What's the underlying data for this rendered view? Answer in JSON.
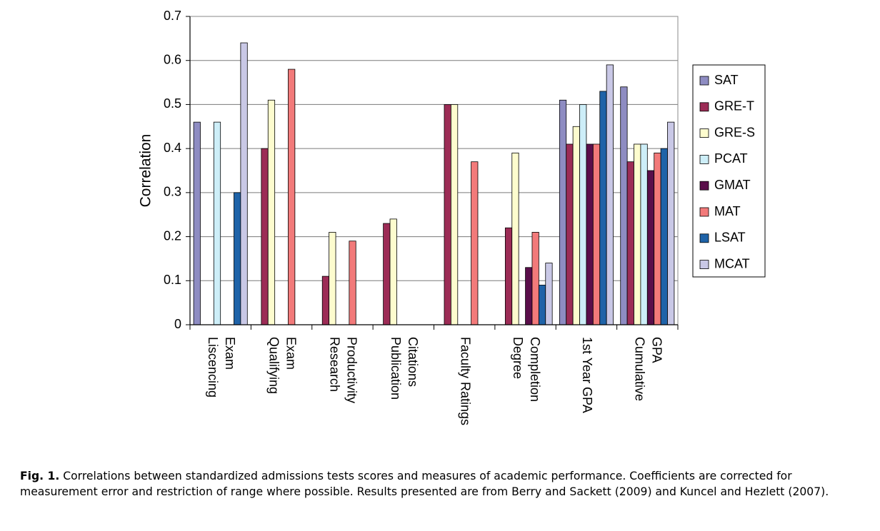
{
  "chart_data": {
    "type": "bar",
    "ylabel": "Correlation",
    "xlabel": "",
    "ylim": [
      0,
      0.7
    ],
    "yticks": [
      "0",
      "0.1",
      "0.2",
      "0.3",
      "0.4",
      "0.5",
      "0.6",
      "0.7"
    ],
    "categories": [
      [
        "Liscencing",
        "Exam"
      ],
      [
        "Qualifying",
        "Exam"
      ],
      [
        "Research",
        "Productivity"
      ],
      [
        "Publication",
        "Citations"
      ],
      [
        "Faculty Ratings"
      ],
      [
        "Degree",
        "Completion"
      ],
      [
        "1st Year GPA"
      ],
      [
        "Cumulative",
        "GPA"
      ]
    ],
    "series": [
      {
        "name": "SAT",
        "color": "#8e8cc2",
        "values": [
          0.46,
          null,
          null,
          null,
          null,
          null,
          0.51,
          0.54
        ]
      },
      {
        "name": "GRE-T",
        "color": "#9c2c56",
        "values": [
          null,
          0.4,
          0.11,
          0.23,
          0.5,
          0.22,
          0.41,
          0.37
        ]
      },
      {
        "name": "GRE-S",
        "color": "#fdfcce",
        "values": [
          null,
          0.51,
          0.21,
          0.24,
          0.5,
          0.39,
          0.45,
          0.41
        ]
      },
      {
        "name": "PCAT",
        "color": "#cdeef8",
        "values": [
          0.46,
          null,
          null,
          null,
          null,
          null,
          0.5,
          0.41
        ]
      },
      {
        "name": "GMAT",
        "color": "#5a0e4a",
        "values": [
          null,
          null,
          null,
          null,
          null,
          0.13,
          0.41,
          0.35
        ]
      },
      {
        "name": "MAT",
        "color": "#f27a7a",
        "values": [
          null,
          0.58,
          0.19,
          null,
          0.37,
          0.21,
          0.41,
          0.39
        ]
      },
      {
        "name": "LSAT",
        "color": "#1f63a8",
        "values": [
          0.3,
          null,
          null,
          null,
          null,
          0.09,
          0.53,
          0.4
        ]
      },
      {
        "name": "MCAT",
        "color": "#c9c8e6",
        "values": [
          0.64,
          null,
          null,
          null,
          null,
          0.14,
          0.59,
          0.46
        ]
      }
    ]
  },
  "caption": {
    "label": "Fig. 1.",
    "text": " Correlations between standardized admissions tests scores and measures of academic performance. Coefficients are corrected for measurement error and restriction of range where possible. Results presented are from Berry and Sackett (2009) and Kuncel and Hezlett (2007)."
  }
}
